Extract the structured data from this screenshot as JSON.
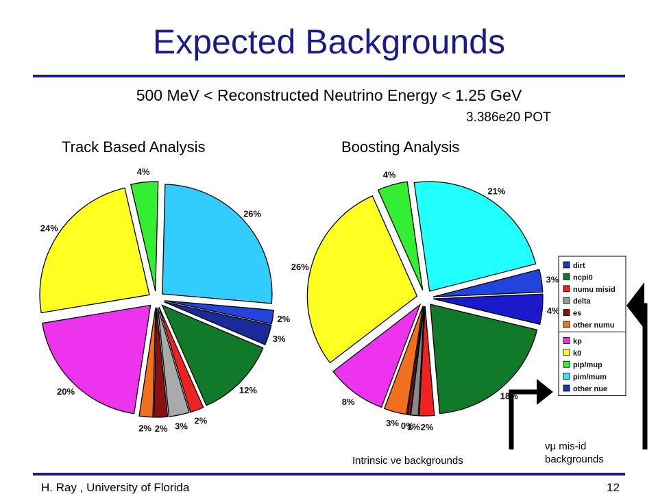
{
  "slide": {
    "title": "Expected Backgrounds",
    "subtitle": "500 MeV < Reconstructed Neutrino Energy < 1.25 GeV",
    "pot": "3.386e20 POT",
    "footer_left": "H. Ray , University of Florida",
    "page_number": "12"
  },
  "annotations": {
    "intrinsic": "Intrinsic νe backgrounds",
    "misid_line1": "νμ mis-id",
    "misid_line2": "backgrounds"
  },
  "legend": {
    "groups": [
      {
        "items": [
          {
            "label": "dirt",
            "color": "#2233bb"
          },
          {
            "label": "ncpi0",
            "color": "#117a2a"
          },
          {
            "label": "numu misid",
            "color": "#ee2222"
          },
          {
            "label": "delta",
            "color": "#999999"
          },
          {
            "label": "es",
            "color": "#881111"
          },
          {
            "label": "other numu",
            "color": "#f07020"
          }
        ]
      },
      {
        "items": [
          {
            "label": "kp",
            "color": "#ee33ee"
          },
          {
            "label": "k0",
            "color": "#ffff22"
          },
          {
            "label": "pip/mup",
            "color": "#33ee33"
          },
          {
            "label": "pim/mum",
            "color": "#22eeff"
          },
          {
            "label": "other nue",
            "color": "#2233bb"
          }
        ]
      }
    ]
  },
  "chart_data": [
    {
      "type": "pie",
      "title": "Track Based Analysis",
      "slices": [
        {
          "label": "4%",
          "value": 4,
          "color": "#33ee33"
        },
        {
          "label": "26%",
          "value": 26,
          "color": "#33ccff"
        },
        {
          "label": "2%",
          "value": 2,
          "color": "#2244dd"
        },
        {
          "label": "3%",
          "value": 3,
          "color": "#1a2a99"
        },
        {
          "label": "12%",
          "value": 12,
          "color": "#117a2a"
        },
        {
          "label": "2%",
          "value": 2,
          "color": "#ee2222"
        },
        {
          "label": "3%",
          "value": 3,
          "color": "#aaaaaa"
        },
        {
          "label": "2%",
          "value": 2,
          "color": "#881111"
        },
        {
          "label": "2%",
          "value": 2,
          "color": "#f07020"
        },
        {
          "label": "20%",
          "value": 20,
          "color": "#ee33ee"
        },
        {
          "label": "24%",
          "value": 24,
          "color": "#ffff22"
        }
      ]
    },
    {
      "type": "pie",
      "title": "Boosting Analysis",
      "slices": [
        {
          "label": "4%",
          "value": 4,
          "color": "#33ee33"
        },
        {
          "label": "21%",
          "value": 21,
          "color": "#22ffff"
        },
        {
          "label": "3%",
          "value": 3,
          "color": "#2244dd"
        },
        {
          "label": "4%",
          "value": 4,
          "color": "#1a1acc"
        },
        {
          "label": "18%",
          "value": 18,
          "color": "#117a2a"
        },
        {
          "label": "2%",
          "value": 2,
          "color": "#ee2222"
        },
        {
          "label": "1%",
          "value": 1,
          "color": "#888888"
        },
        {
          "label": "0%",
          "value": 0.4,
          "color": "#881111"
        },
        {
          "label": "3%",
          "value": 3,
          "color": "#f07020"
        },
        {
          "label": "8%",
          "value": 8,
          "color": "#ee33ee"
        },
        {
          "label": "26%",
          "value": 26,
          "color": "#ffff22"
        }
      ]
    }
  ]
}
